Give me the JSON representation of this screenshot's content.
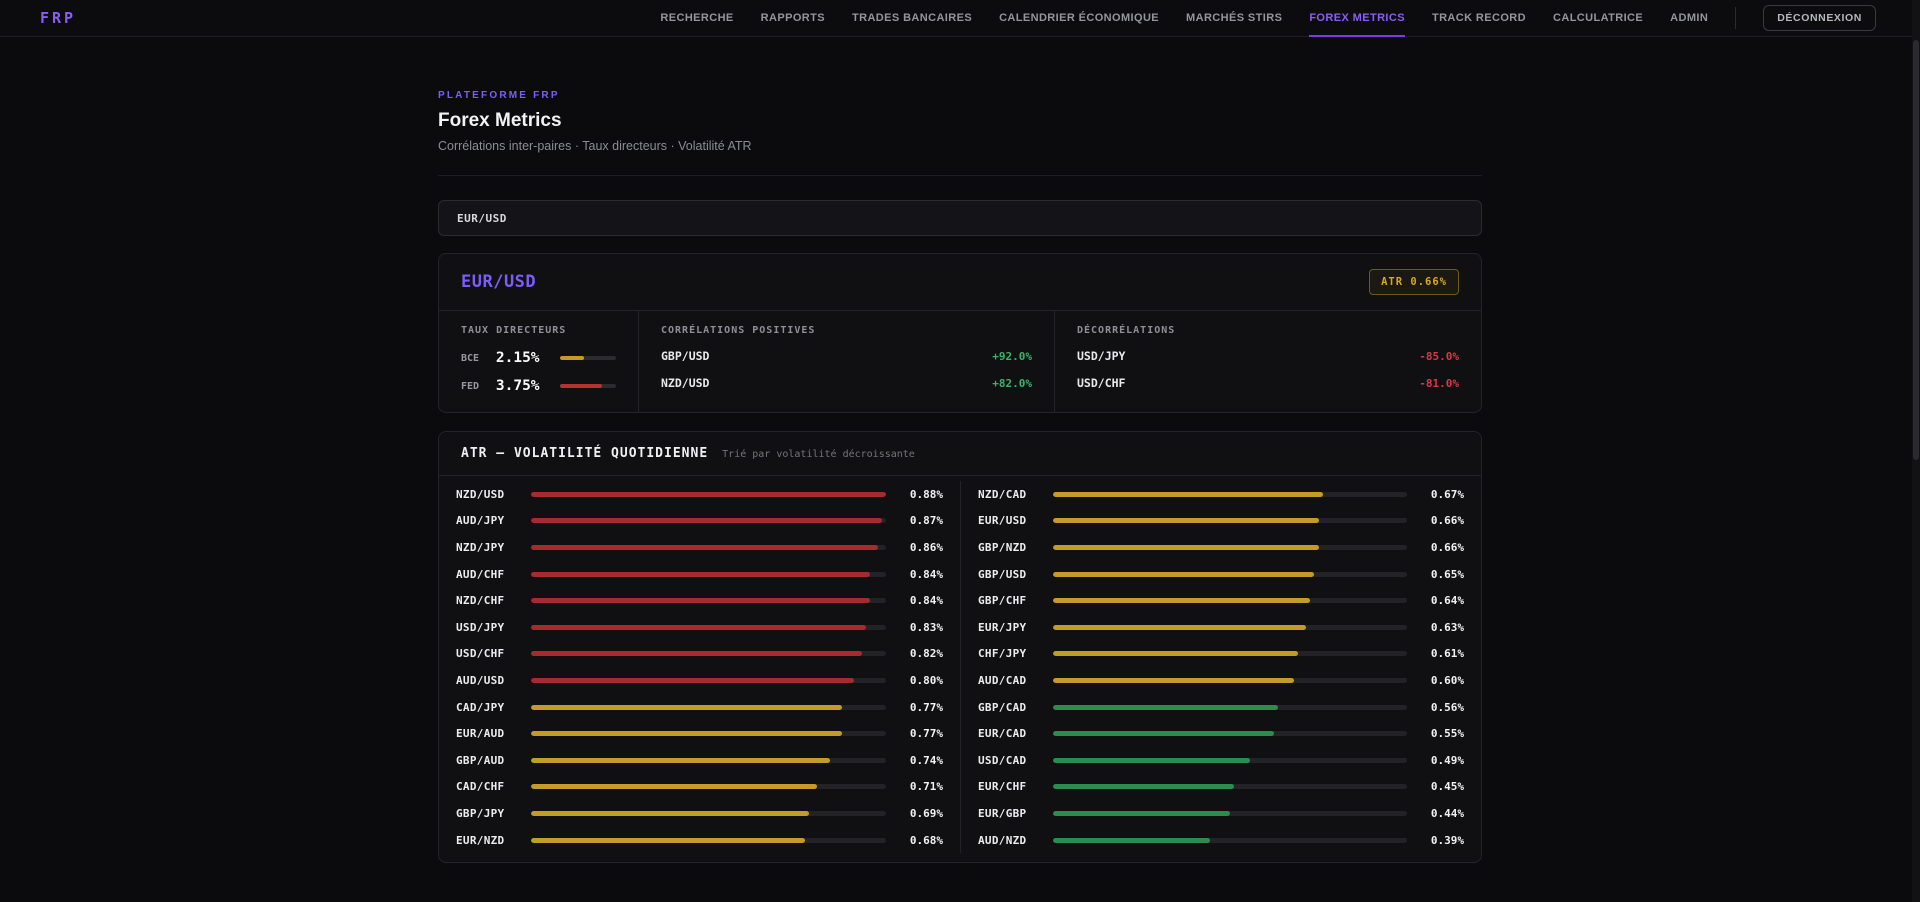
{
  "nav": {
    "logo": "FRP",
    "items": [
      {
        "label": "RECHERCHE",
        "active": false
      },
      {
        "label": "RAPPORTS",
        "active": false
      },
      {
        "label": "TRADES BANCAIRES",
        "active": false
      },
      {
        "label": "CALENDRIER ÉCONOMIQUE",
        "active": false
      },
      {
        "label": "MARCHÉS STIRS",
        "active": false
      },
      {
        "label": "FOREX METRICS",
        "active": true
      },
      {
        "label": "TRACK RECORD",
        "active": false
      },
      {
        "label": "CALCULATRICE",
        "active": false
      },
      {
        "label": "ADMIN",
        "active": false
      }
    ],
    "logout_label": "DÉCONNEXION"
  },
  "header": {
    "eyebrow": "PLATEFORME FRP",
    "title": "Forex Metrics",
    "subtitle": "Corrélations inter-paires · Taux directeurs · Volatilité ATR"
  },
  "pair_selector": {
    "value": "EUR/USD"
  },
  "pair_card": {
    "title": "EUR/USD",
    "atr_badge": "ATR 0.66%",
    "taux_directeurs": {
      "heading": "TAUX DIRECTEURS",
      "scale_max_pct": 5,
      "rows": [
        {
          "label": "BCE",
          "value": "2.15%",
          "rate": 2.15,
          "color": "#c49b26"
        },
        {
          "label": "FED",
          "value": "3.75%",
          "rate": 3.75,
          "color": "#b23330"
        }
      ]
    },
    "correlations_positives": {
      "heading": "CORRÉLATIONS POSITIVES",
      "rows": [
        {
          "pair": "GBP/USD",
          "value": "+92.0%"
        },
        {
          "pair": "NZD/USD",
          "value": "+82.0%"
        }
      ]
    },
    "decorrelations": {
      "heading": "DÉCORRÉLATIONS",
      "rows": [
        {
          "pair": "USD/JPY",
          "value": "-85.0%"
        },
        {
          "pair": "USD/CHF",
          "value": "-81.0%"
        }
      ]
    }
  },
  "atr_section": {
    "title": "ATR — VOLATILITÉ QUOTIDIENNE",
    "note": "Trié par volatilité décroissante",
    "max_value": 0.88,
    "thresholds": {
      "red_min": 0.8,
      "yellow_min": 0.6
    },
    "bar_colors": {
      "red": "#a72a2e",
      "yellow": "#c39b26",
      "green": "#2b8c4d"
    },
    "left_column": [
      {
        "pair": "NZD/USD",
        "value": 0.88
      },
      {
        "pair": "AUD/JPY",
        "value": 0.87
      },
      {
        "pair": "NZD/JPY",
        "value": 0.86
      },
      {
        "pair": "AUD/CHF",
        "value": 0.84
      },
      {
        "pair": "NZD/CHF",
        "value": 0.84
      },
      {
        "pair": "USD/JPY",
        "value": 0.83
      },
      {
        "pair": "USD/CHF",
        "value": 0.82
      },
      {
        "pair": "AUD/USD",
        "value": 0.8
      },
      {
        "pair": "CAD/JPY",
        "value": 0.77
      },
      {
        "pair": "EUR/AUD",
        "value": 0.77
      },
      {
        "pair": "GBP/AUD",
        "value": 0.74
      },
      {
        "pair": "CAD/CHF",
        "value": 0.71
      },
      {
        "pair": "GBP/JPY",
        "value": 0.69
      },
      {
        "pair": "EUR/NZD",
        "value": 0.68
      }
    ],
    "right_column": [
      {
        "pair": "NZD/CAD",
        "value": 0.67
      },
      {
        "pair": "EUR/USD",
        "value": 0.66
      },
      {
        "pair": "GBP/NZD",
        "value": 0.66
      },
      {
        "pair": "GBP/USD",
        "value": 0.65
      },
      {
        "pair": "GBP/CHF",
        "value": 0.64
      },
      {
        "pair": "EUR/JPY",
        "value": 0.63
      },
      {
        "pair": "CHF/JPY",
        "value": 0.61
      },
      {
        "pair": "AUD/CAD",
        "value": 0.6
      },
      {
        "pair": "GBP/CAD",
        "value": 0.56
      },
      {
        "pair": "EUR/CAD",
        "value": 0.55
      },
      {
        "pair": "USD/CAD",
        "value": 0.49
      },
      {
        "pair": "EUR/CHF",
        "value": 0.45
      },
      {
        "pair": "EUR/GBP",
        "value": 0.44
      },
      {
        "pair": "AUD/NZD",
        "value": 0.39
      }
    ]
  },
  "colors": {
    "accent_purple": "#8b5cf6",
    "badge_yellow": "#d9a821",
    "positive_green": "#3eb168",
    "negative_red": "#d23b44",
    "page_bg": "#0b0b0d",
    "card_bg": "#101013"
  }
}
